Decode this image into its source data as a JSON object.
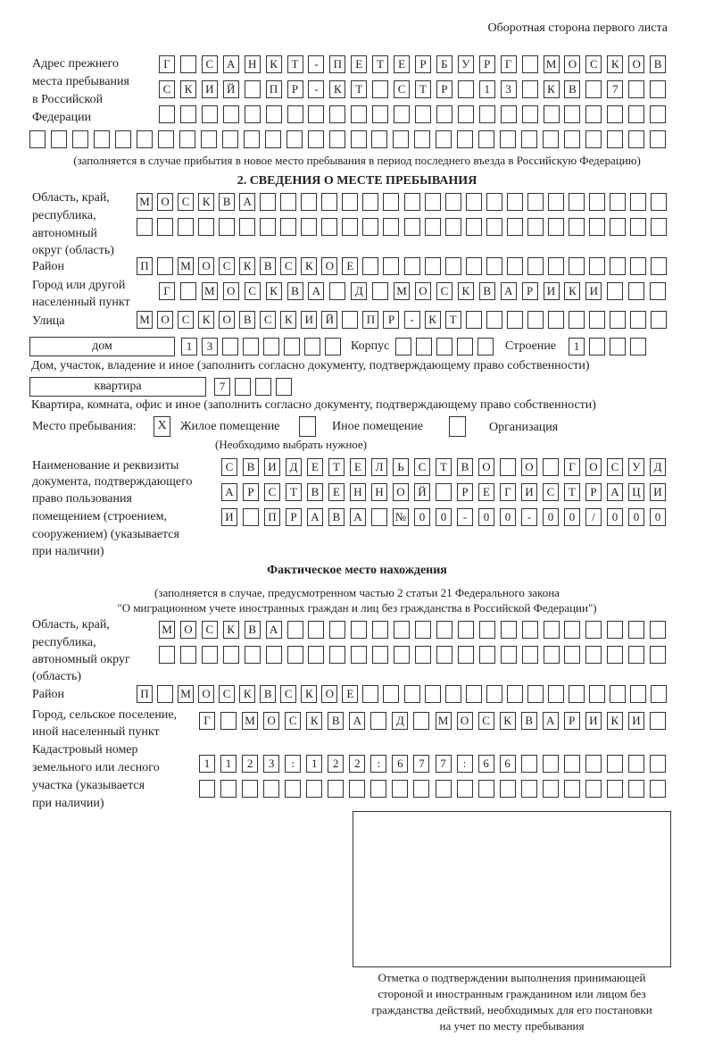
{
  "header": {
    "side_label": "Оборотная сторона первого листа"
  },
  "previous_address": {
    "label": [
      "Адрес прежнего",
      "места пребывания",
      "в Российской",
      "Федерации"
    ],
    "rows": [
      [
        "Г",
        "",
        "С",
        "А",
        "Н",
        "К",
        "Т",
        "-",
        "П",
        "Е",
        "Т",
        "Е",
        "Р",
        "Б",
        "У",
        "Р",
        "Г",
        "",
        "М",
        "О",
        "С",
        "К",
        "О",
        "В"
      ],
      [
        "С",
        "К",
        "И",
        "Й",
        "",
        "П",
        "Р",
        "-",
        "К",
        "Т",
        "",
        "С",
        "Т",
        "Р",
        "",
        "1",
        "3",
        "",
        "К",
        "В",
        "",
        "7",
        "",
        ""
      ],
      [
        "",
        "",
        "",
        "",
        "",
        "",
        "",
        "",
        "",
        "",
        "",
        "",
        "",
        "",
        "",
        "",
        "",
        "",
        "",
        "",
        "",
        "",
        "",
        ""
      ],
      [
        "",
        "",
        "",
        "",
        "",
        "",
        "",
        "",
        "",
        "",
        "",
        "",
        "",
        "",
        "",
        "",
        "",
        "",
        "",
        "",
        "",
        "",
        "",
        "",
        "",
        "",
        "",
        "",
        "",
        ""
      ]
    ],
    "note": "(заполняется в случае прибытия в новое место пребывания в период последнего въезда в Российскую Федерацию)"
  },
  "section2": {
    "title": "2. СВЕДЕНИЯ О МЕСТЕ ПРЕБЫВАНИЯ",
    "region_label": [
      "Область, край,",
      "республика,",
      "автономный",
      "округ (область)"
    ],
    "region_rows": [
      [
        "М",
        "О",
        "С",
        "К",
        "В",
        "А",
        "",
        "",
        "",
        "",
        "",
        "",
        "",
        "",
        "",
        "",
        "",
        "",
        "",
        "",
        "",
        "",
        "",
        "",
        "",
        ""
      ],
      [
        "",
        "",
        "",
        "",
        "",
        "",
        "",
        "",
        "",
        "",
        "",
        "",
        "",
        "",
        "",
        "",
        "",
        "",
        "",
        "",
        "",
        "",
        "",
        "",
        "",
        ""
      ]
    ],
    "district_label": "Район",
    "district_row": [
      "П",
      "",
      "М",
      "О",
      "С",
      "К",
      "В",
      "С",
      "К",
      "О",
      "Е",
      "",
      "",
      "",
      "",
      "",
      "",
      "",
      "",
      "",
      "",
      "",
      "",
      "",
      "",
      ""
    ],
    "city_label": [
      "Город или другой",
      "населенный пункт"
    ],
    "city_row": [
      "Г",
      "",
      "М",
      "О",
      "С",
      "К",
      "В",
      "А",
      "",
      "Д",
      "",
      "М",
      "О",
      "С",
      "К",
      "В",
      "А",
      "Р",
      "И",
      "К",
      "И",
      "",
      "",
      ""
    ],
    "street_label": "Улица",
    "street_row": [
      "М",
      "О",
      "С",
      "К",
      "О",
      "В",
      "С",
      "К",
      "И",
      "Й",
      "",
      "П",
      "Р",
      "-",
      "К",
      "Т",
      "",
      "",
      "",
      "",
      "",
      "",
      "",
      "",
      "",
      ""
    ],
    "house_type": "дом",
    "house_cells": [
      "1",
      "3",
      "",
      "",
      "",
      "",
      "",
      ""
    ],
    "korpus_label": "Корпус",
    "korpus_cells": [
      "",
      "",
      "",
      "",
      ""
    ],
    "building_label": "Строение",
    "building_cells": [
      "1",
      "",
      "",
      ""
    ],
    "house_note": "Дом, участок, владение и иное (заполнить согласно документу, подтверждающему право собственности)",
    "apartment_type": "квартира",
    "apartment_cells": [
      "7",
      "",
      "",
      ""
    ],
    "apartment_note": "Квартира, комната, офис и иное (заполнить согласно документу, подтверждающему право собственности)",
    "stay_place_label": "Место пребывания:",
    "stay_options": [
      {
        "label": "Жилое помещение",
        "mark": "Х"
      },
      {
        "label": "Иное помещение",
        "mark": ""
      },
      {
        "label": "Организация",
        "mark": ""
      }
    ],
    "stay_note": "(Необходимо выбрать нужное)",
    "document_label": [
      "Наименование и реквизиты",
      "документа, подтверждающего",
      "право пользования",
      "помещением (строением,",
      "сооружением) (указывается",
      "при наличии)"
    ],
    "document_rows": [
      [
        "С",
        "В",
        "И",
        "Д",
        "Е",
        "Т",
        "Е",
        "Л",
        "Ь",
        "С",
        "Т",
        "В",
        "О",
        "",
        "О",
        "",
        "Г",
        "О",
        "С",
        "У",
        "Д"
      ],
      [
        "А",
        "Р",
        "С",
        "Т",
        "В",
        "Е",
        "Н",
        "Н",
        "О",
        "Й",
        "",
        "Р",
        "Е",
        "Г",
        "И",
        "С",
        "Т",
        "Р",
        "А",
        "Ц",
        "И"
      ],
      [
        "И",
        "",
        "П",
        "Р",
        "А",
        "В",
        "А",
        "",
        "№",
        "0",
        "0",
        "-",
        "0",
        "0",
        "-",
        "0",
        "0",
        "/",
        "0",
        "0",
        "0"
      ]
    ]
  },
  "actual": {
    "title": "Фактическое место нахождения",
    "note": [
      "(заполняется в случае, предусмотренном частью 2 статьи 21 Федерального закона",
      "\"О миграционном учете иностранных граждан и лиц без гражданства в Российской Федерации\")"
    ],
    "region_label": [
      "Область, край,",
      "республика,",
      "автономный округ",
      "(область)"
    ],
    "region_rows": [
      [
        "М",
        "О",
        "С",
        "К",
        "В",
        "А",
        "",
        "",
        "",
        "",
        "",
        "",
        "",
        "",
        "",
        "",
        "",
        "",
        "",
        "",
        "",
        "",
        "",
        ""
      ],
      [
        "",
        "",
        "",
        "",
        "",
        "",
        "",
        "",
        "",
        "",
        "",
        "",
        "",
        "",
        "",
        "",
        "",
        "",
        "",
        "",
        "",
        "",
        "",
        ""
      ]
    ],
    "district_label": "Район",
    "district_row": [
      "П",
      "",
      "М",
      "О",
      "С",
      "К",
      "В",
      "С",
      "К",
      "О",
      "Е",
      "",
      "",
      "",
      "",
      "",
      "",
      "",
      "",
      "",
      "",
      "",
      "",
      "",
      "",
      ""
    ],
    "city_label": [
      "Город, сельское поселение,",
      "иной населенный пункт"
    ],
    "city_row": [
      "Г",
      "",
      "М",
      "О",
      "С",
      "К",
      "В",
      "А",
      "",
      "Д",
      "",
      "М",
      "О",
      "С",
      "К",
      "В",
      "А",
      "Р",
      "И",
      "К",
      "И",
      ""
    ],
    "cadastral_label": [
      "Кадастровый номер",
      "земельного или лесного",
      "участка (указывается",
      "при наличии)"
    ],
    "cadastral_rows": [
      [
        "1",
        "1",
        "2",
        "3",
        ":",
        "1",
        "2",
        "2",
        ":",
        "6",
        "7",
        "7",
        ":",
        "6",
        "6",
        "",
        "",
        "",
        "",
        "",
        "",
        ""
      ],
      [
        "",
        "",
        "",
        "",
        "",
        "",
        "",
        "",
        "",
        "",
        "",
        "",
        "",
        "",
        "",
        "",
        "",
        "",
        "",
        "",
        "",
        ""
      ]
    ]
  },
  "stamp_caption": [
    "Отметка о подтверждении выполнения принимающей",
    "стороной и иностранным гражданином или лицом без",
    "гражданства действий, необходимых для его постановки",
    "на учет по месту пребывания"
  ]
}
